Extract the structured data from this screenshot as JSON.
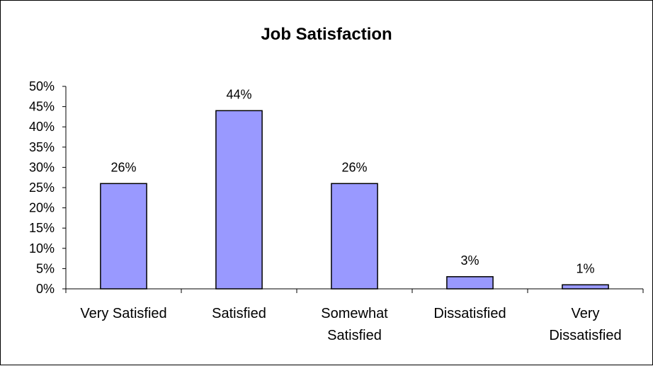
{
  "chart_data": {
    "type": "bar",
    "title": "Job Satisfaction",
    "xlabel": "",
    "ylabel": "",
    "categories": [
      [
        "Very Satisfied"
      ],
      [
        "Satisfied"
      ],
      [
        "Somewhat",
        "Satisfied"
      ],
      [
        "Dissatisfied"
      ],
      [
        "Very",
        "Dissatisfied"
      ]
    ],
    "values": [
      26,
      44,
      26,
      3,
      1
    ],
    "value_labels": [
      "26%",
      "44%",
      "26%",
      "3%",
      "1%"
    ],
    "ylim": [
      0,
      50
    ],
    "yticks": [
      "0%",
      "5%",
      "10%",
      "15%",
      "20%",
      "25%",
      "30%",
      "35%",
      "40%",
      "45%",
      "50%"
    ],
    "grid": false,
    "legend": "none",
    "colors": {
      "bar_fill": "#9999ff",
      "bar_stroke": "#000000",
      "axis": "#000000"
    }
  }
}
